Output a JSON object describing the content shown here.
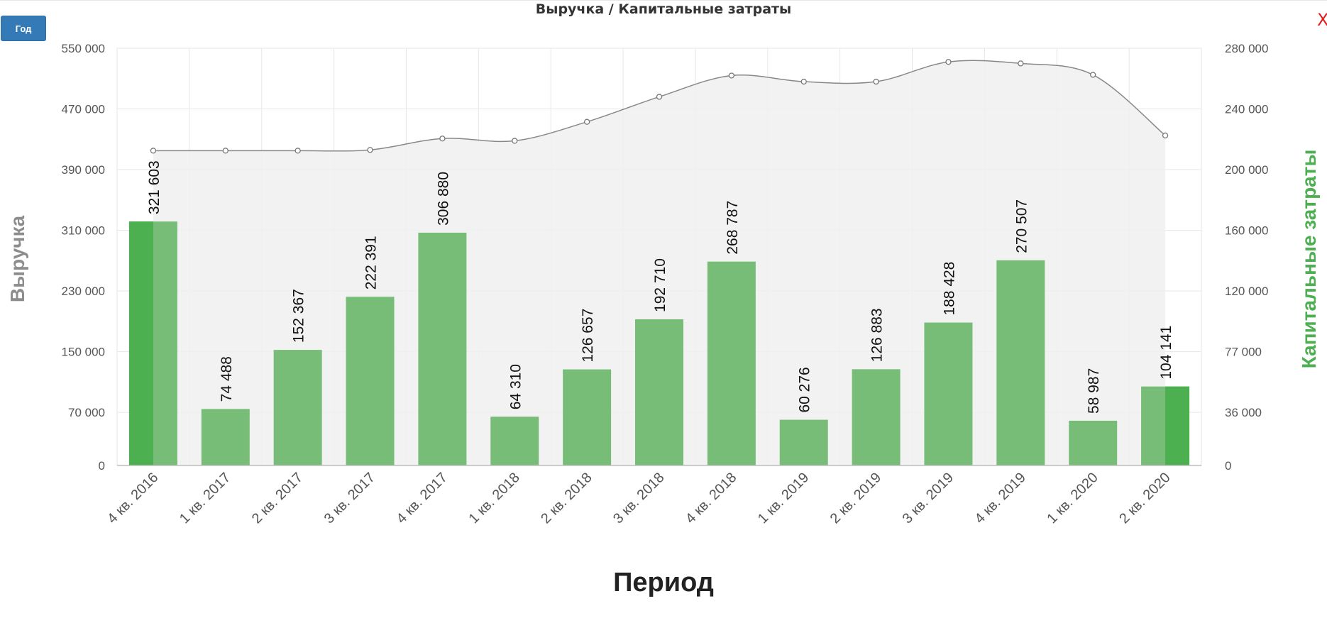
{
  "toolbar": {
    "period_button_label": "Год"
  },
  "close_label": "X",
  "chart_data": {
    "type": "bar",
    "title": "Выручка / Капитальные затраты",
    "xlabel": "Период",
    "ylabel_left": "Выручка",
    "ylabel_right": "Капитальные затраты",
    "categories": [
      "4 кв. 2016",
      "1 кв. 2017",
      "2 кв. 2017",
      "3 кв. 2017",
      "4 кв. 2017",
      "1 кв. 2018",
      "2 кв. 2018",
      "3 кв. 2018",
      "4 кв. 2018",
      "1 кв. 2019",
      "2 кв. 2019",
      "3 кв. 2019",
      "4 кв. 2019",
      "1 кв. 2020",
      "2 кв. 2020"
    ],
    "left_axis": {
      "ylim": [
        0,
        550000
      ],
      "ticks": [
        0,
        70000,
        150000,
        230000,
        310000,
        390000,
        470000,
        550000
      ],
      "tick_labels": [
        "0",
        "70 000",
        "150 000",
        "230 000",
        "310 000",
        "390 000",
        "470 000",
        "550 000"
      ]
    },
    "right_axis": {
      "ticks": [
        0,
        36000,
        77000,
        120000,
        160000,
        200000,
        240000,
        280000
      ],
      "tick_labels": [
        "0",
        "36 000",
        "77 000",
        "120 000",
        "160 000",
        "200 000",
        "240 000",
        "280 000"
      ]
    },
    "grid": true,
    "series": [
      {
        "name": "Выручка",
        "type": "bar",
        "axis": "left",
        "color": "#77bd77",
        "highlight_color": "#4caf50",
        "values": [
          321603,
          74488,
          152367,
          222391,
          306880,
          64310,
          126657,
          192710,
          268787,
          60276,
          126883,
          188428,
          270507,
          58987,
          104141
        ],
        "labels": [
          "321 603",
          "74 488",
          "152 367",
          "222 391",
          "306 880",
          "64 310",
          "126 657",
          "192 710",
          "268 787",
          "60 276",
          "126 883",
          "188 428",
          "270 507",
          "58 987",
          "104 141"
        ]
      },
      {
        "name": "Капитальные затраты",
        "type": "area",
        "axis": "right",
        "color": "#888888",
        "fill": "#f0f0f0",
        "values": [
          212500,
          212500,
          212500,
          213000,
          220500,
          219000,
          231500,
          248000,
          262000,
          258000,
          258000,
          271000,
          270000,
          262500,
          222500
        ]
      }
    ]
  }
}
